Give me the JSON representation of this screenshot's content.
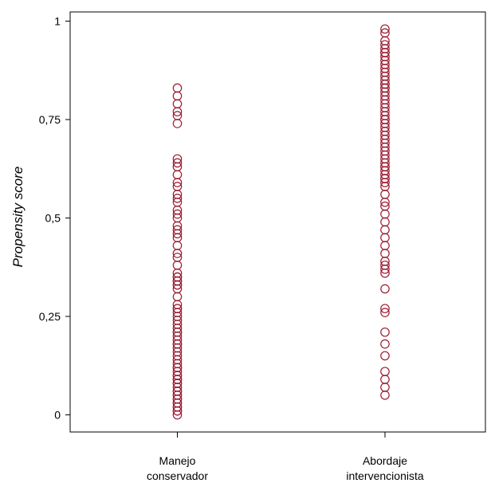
{
  "chart_data": {
    "type": "scatter",
    "title": "",
    "xlabel": "",
    "ylabel": "Propensity score",
    "ylim": [
      -0.05,
      1.02
    ],
    "grid": false,
    "legend": "none",
    "marker_color": "#9b1b30",
    "y_ticks": [
      {
        "value": 0,
        "label": "0"
      },
      {
        "value": 0.25,
        "label": "0,25"
      },
      {
        "value": 0.5,
        "label": "0,5"
      },
      {
        "value": 0.75,
        "label": "0,75"
      },
      {
        "value": 1,
        "label": "1"
      }
    ],
    "categories": [
      {
        "line1": "Manejo",
        "line2": "conservador"
      },
      {
        "line1": "Abordaje",
        "line2": "intervencionista"
      }
    ],
    "series": [
      {
        "category_index": 0,
        "values": [
          0.83,
          0.81,
          0.79,
          0.77,
          0.76,
          0.74,
          0.65,
          0.64,
          0.63,
          0.61,
          0.59,
          0.58,
          0.56,
          0.55,
          0.54,
          0.52,
          0.51,
          0.5,
          0.48,
          0.47,
          0.46,
          0.45,
          0.43,
          0.41,
          0.4,
          0.38,
          0.36,
          0.35,
          0.35,
          0.34,
          0.34,
          0.33,
          0.33,
          0.32,
          0.3,
          0.28,
          0.27,
          0.27,
          0.26,
          0.25,
          0.24,
          0.23,
          0.22,
          0.21,
          0.21,
          0.2,
          0.19,
          0.18,
          0.18,
          0.17,
          0.16,
          0.15,
          0.14,
          0.13,
          0.12,
          0.12,
          0.11,
          0.1,
          0.1,
          0.09,
          0.09,
          0.08,
          0.08,
          0.07,
          0.06,
          0.06,
          0.05,
          0.05,
          0.04,
          0.04,
          0.03,
          0.03,
          0.02,
          0.02,
          0.01,
          0.01,
          0.0
        ]
      },
      {
        "category_index": 1,
        "values": [
          0.98,
          0.97,
          0.95,
          0.94,
          0.93,
          0.92,
          0.92,
          0.91,
          0.9,
          0.89,
          0.88,
          0.87,
          0.86,
          0.85,
          0.84,
          0.84,
          0.83,
          0.83,
          0.82,
          0.81,
          0.8,
          0.79,
          0.78,
          0.77,
          0.76,
          0.75,
          0.75,
          0.74,
          0.73,
          0.72,
          0.71,
          0.7,
          0.69,
          0.68,
          0.67,
          0.66,
          0.65,
          0.64,
          0.63,
          0.63,
          0.62,
          0.61,
          0.6,
          0.6,
          0.59,
          0.58,
          0.56,
          0.54,
          0.53,
          0.51,
          0.49,
          0.47,
          0.45,
          0.43,
          0.41,
          0.39,
          0.38,
          0.37,
          0.36,
          0.32,
          0.27,
          0.26,
          0.21,
          0.18,
          0.15,
          0.11,
          0.09,
          0.07,
          0.05
        ]
      }
    ]
  }
}
